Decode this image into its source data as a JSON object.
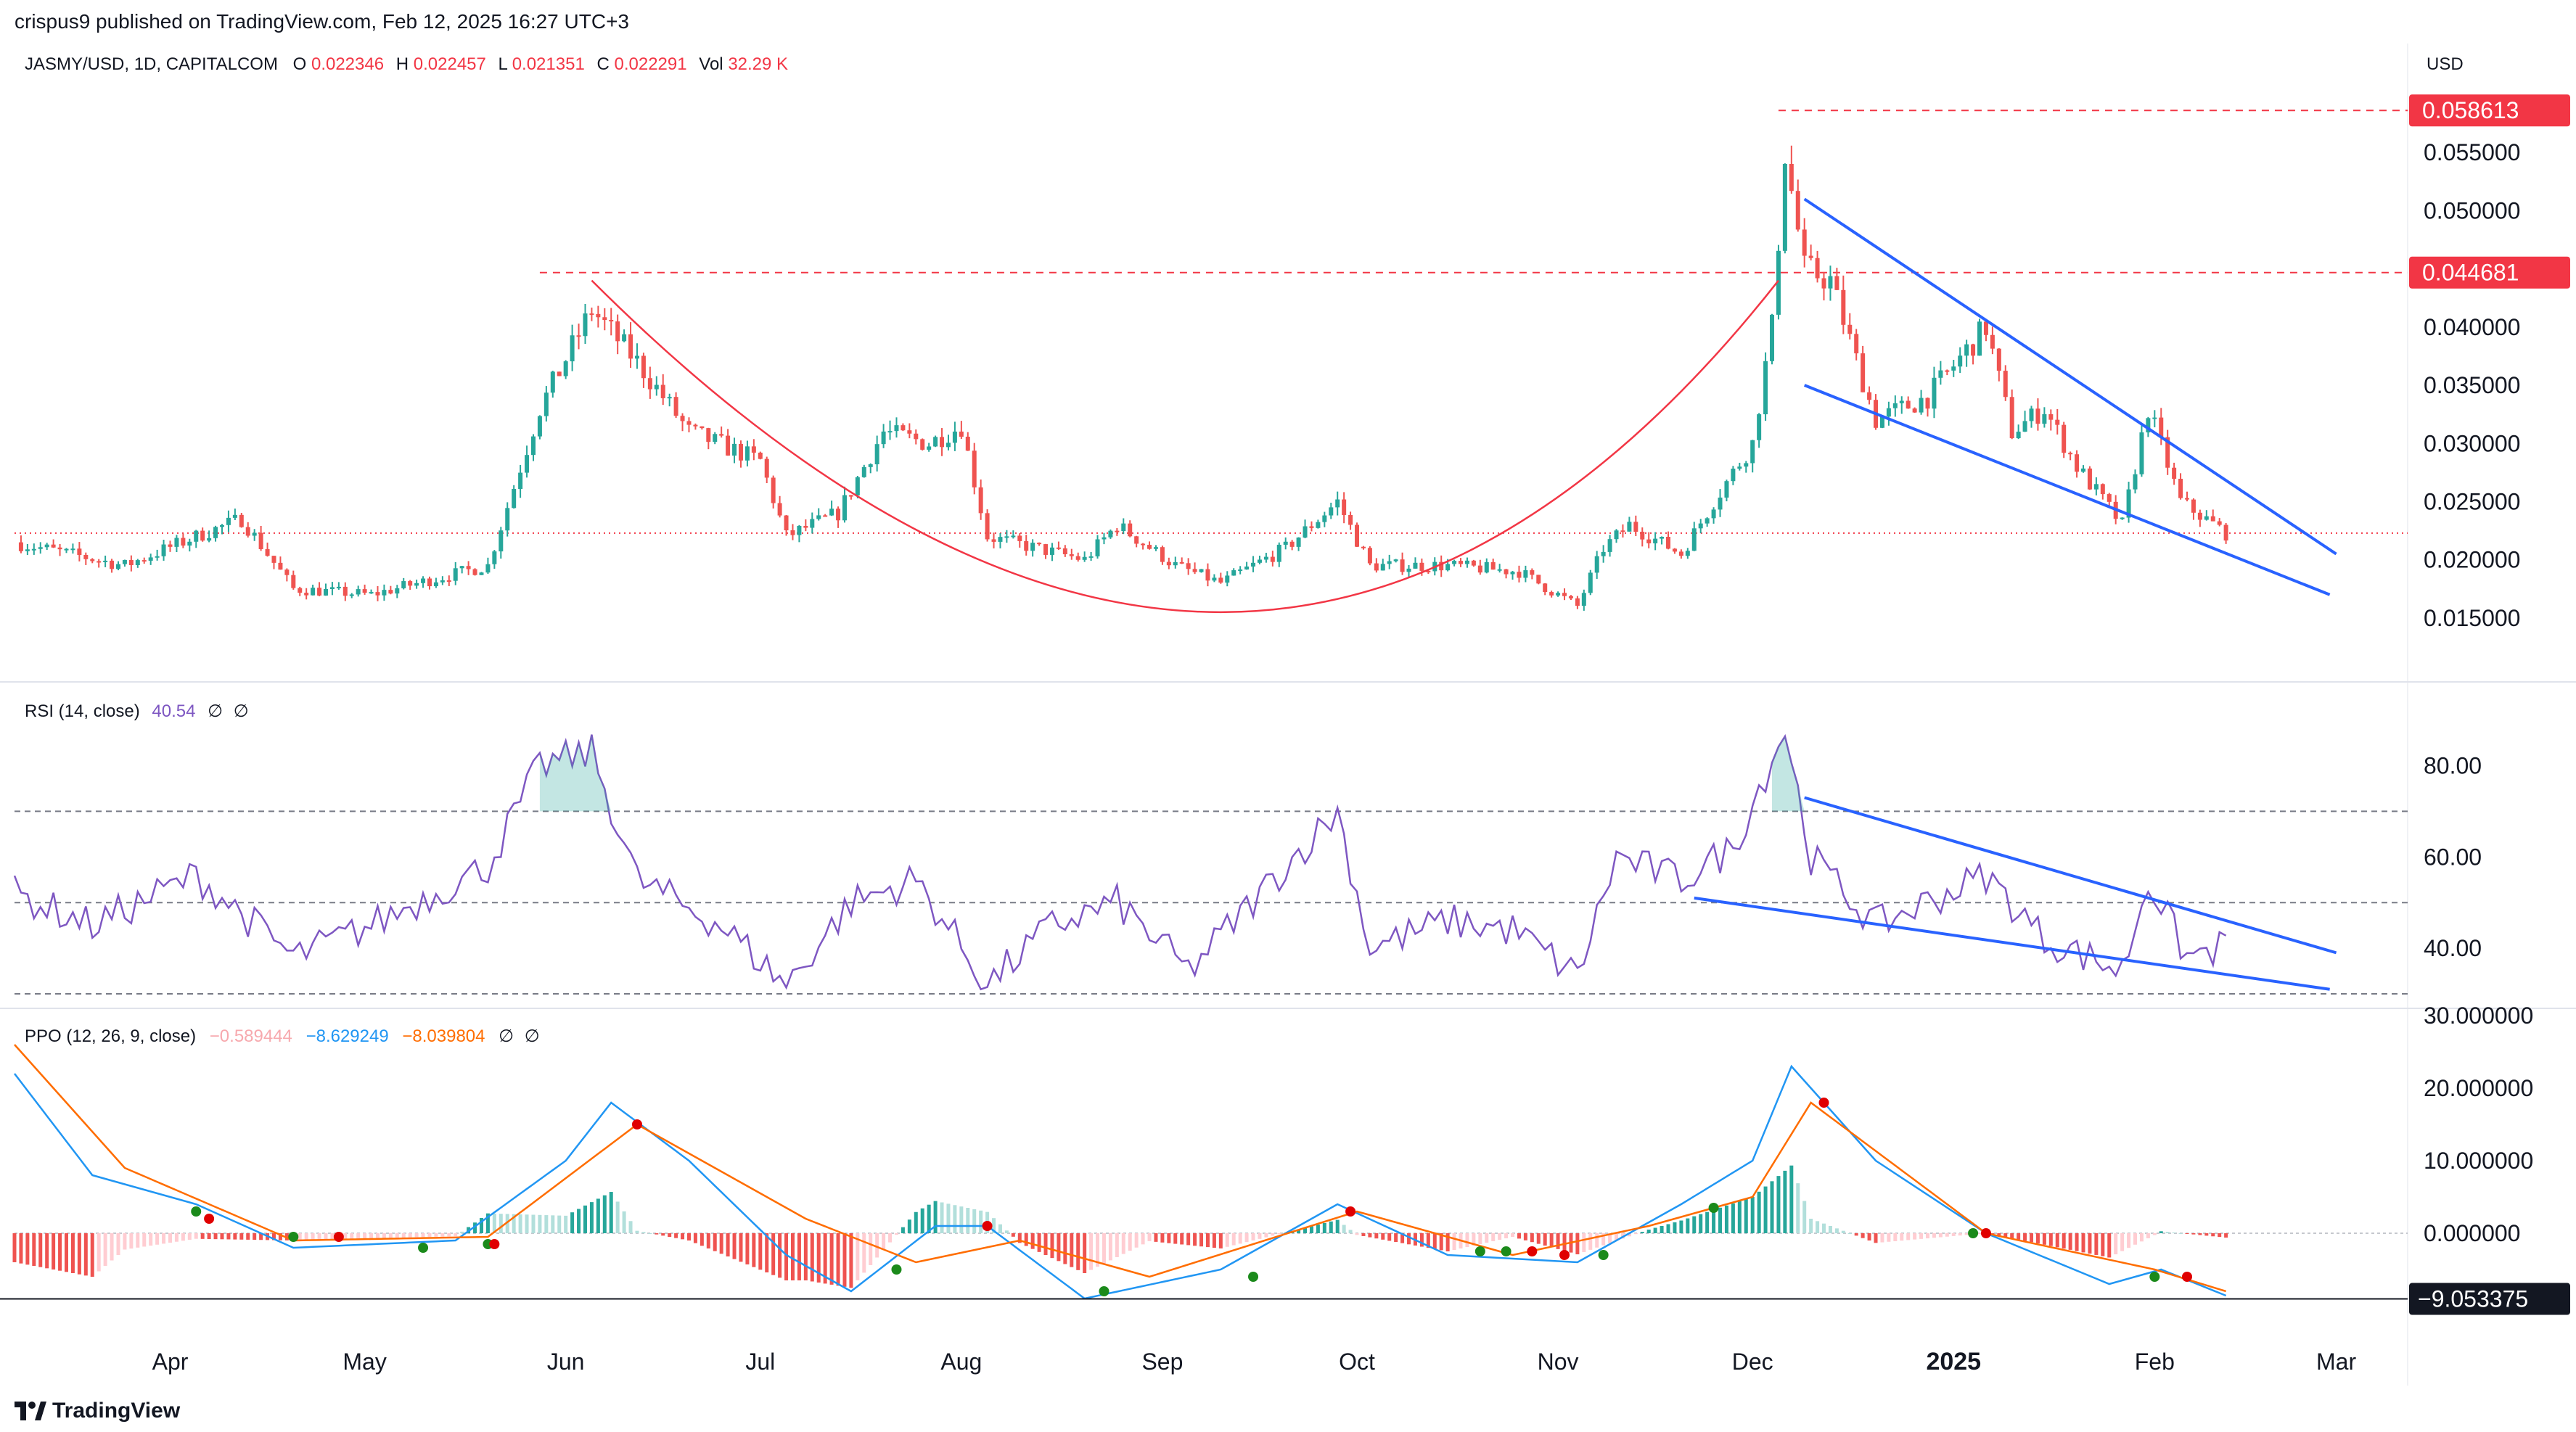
{
  "header": {
    "publisher_line": "crispus9 published on TradingView.com, Feb 12, 2025 16:27 UTC+3"
  },
  "legend": {
    "symbol": "JASMY/USD, 1D, CAPITALCOM",
    "o_label": "O",
    "o_value": "0.022346",
    "h_label": "H",
    "h_value": "0.022457",
    "l_label": "L",
    "l_value": "0.021351",
    "c_label": "C",
    "c_value": "0.022291",
    "vol_label": "Vol",
    "vol_value": "32.29 K"
  },
  "rsi_legend": {
    "name": "RSI (14, close)",
    "value": "40.54",
    "null1": "∅",
    "null2": "∅"
  },
  "ppo_legend": {
    "name": "PPO (12, 26, 9, close)",
    "hist": "−0.589444",
    "ppo": "−8.629249",
    "signal": "−8.039804",
    "null1": "∅",
    "null2": "∅"
  },
  "currency_label": "USD",
  "footer": {
    "brand": "TradingView"
  },
  "colors": {
    "up": "#26a69a",
    "down": "#ef5350",
    "rsi": "#7e57c2",
    "trend": "#2962ff",
    "cup": "#f23645",
    "ppo": "#2196f3",
    "signal": "#ff6d00"
  },
  "chart_data": [
    {
      "type": "candlestick",
      "title": "JASMY/USD, 1D, CAPITALCOM",
      "x_ticks": [
        "Apr",
        "May",
        "Jun",
        "Jul",
        "Aug",
        "Sep",
        "Oct",
        "Nov",
        "Dec",
        "2025",
        "Feb",
        "Mar"
      ],
      "y_ticks": [
        "0.055000",
        "0.050000",
        "0.040000",
        "0.035000",
        "0.030000",
        "0.025000",
        "0.020000",
        "0.015000"
      ],
      "ylim": [
        0.012,
        0.06
      ],
      "x_range": [
        "2024-03-08",
        "2025-03-10"
      ],
      "price_labels": [
        {
          "text": "0.058613",
          "value": 0.058613
        },
        {
          "text": "0.044681",
          "value": 0.044681
        }
      ],
      "last_price": 0.022291,
      "anchors": [
        {
          "date": "2024-03-08",
          "price": 0.0215
        },
        {
          "date": "2024-03-25",
          "price": 0.0195
        },
        {
          "date": "2024-04-05",
          "price": 0.022
        },
        {
          "date": "2024-04-12",
          "price": 0.0235
        },
        {
          "date": "2024-04-20",
          "price": 0.0175
        },
        {
          "date": "2024-05-02",
          "price": 0.017
        },
        {
          "date": "2024-05-20",
          "price": 0.0195
        },
        {
          "date": "2024-05-28",
          "price": 0.033
        },
        {
          "date": "2024-06-05",
          "price": 0.0415
        },
        {
          "date": "2024-06-12",
          "price": 0.037
        },
        {
          "date": "2024-06-20",
          "price": 0.031
        },
        {
          "date": "2024-07-01",
          "price": 0.0285
        },
        {
          "date": "2024-07-05",
          "price": 0.022
        },
        {
          "date": "2024-07-13",
          "price": 0.024
        },
        {
          "date": "2024-07-20",
          "price": 0.031
        },
        {
          "date": "2024-07-27",
          "price": 0.03
        },
        {
          "date": "2024-08-01",
          "price": 0.0315
        },
        {
          "date": "2024-08-05",
          "price": 0.022
        },
        {
          "date": "2024-08-20",
          "price": 0.02
        },
        {
          "date": "2024-08-25",
          "price": 0.023
        },
        {
          "date": "2024-09-03",
          "price": 0.0195
        },
        {
          "date": "2024-09-10",
          "price": 0.018
        },
        {
          "date": "2024-09-20",
          "price": 0.021
        },
        {
          "date": "2024-09-28",
          "price": 0.025
        },
        {
          "date": "2024-10-03",
          "price": 0.0195
        },
        {
          "date": "2024-10-15",
          "price": 0.0195
        },
        {
          "date": "2024-10-26",
          "price": 0.019
        },
        {
          "date": "2024-11-04",
          "price": 0.016
        },
        {
          "date": "2024-11-08",
          "price": 0.021
        },
        {
          "date": "2024-11-12",
          "price": 0.023
        },
        {
          "date": "2024-11-20",
          "price": 0.0205
        },
        {
          "date": "2024-11-25",
          "price": 0.025
        },
        {
          "date": "2024-12-01",
          "price": 0.03
        },
        {
          "date": "2024-12-04",
          "price": 0.04
        },
        {
          "date": "2024-12-06",
          "price": 0.055
        },
        {
          "date": "2024-12-09",
          "price": 0.045
        },
        {
          "date": "2024-12-13",
          "price": 0.044
        },
        {
          "date": "2024-12-20",
          "price": 0.032
        },
        {
          "date": "2024-12-28",
          "price": 0.034
        },
        {
          "date": "2025-01-06",
          "price": 0.04
        },
        {
          "date": "2025-01-10",
          "price": 0.031
        },
        {
          "date": "2025-01-15",
          "price": 0.033
        },
        {
          "date": "2025-01-20",
          "price": 0.028
        },
        {
          "date": "2025-01-27",
          "price": 0.023
        },
        {
          "date": "2025-01-31",
          "price": 0.033
        },
        {
          "date": "2025-02-05",
          "price": 0.025
        },
        {
          "date": "2025-02-12",
          "price": 0.0223
        }
      ],
      "drawings": {
        "resistance_lines": [
          0.058613,
          0.044681
        ],
        "cup": {
          "start": [
            "2024-06-05",
            0.044
          ],
          "bottom": [
            "2024-09-10",
            0.0155
          ],
          "end": [
            "2024-12-05",
            0.044
          ]
        },
        "wedge_upper": [
          [
            "2024-12-09",
            0.051
          ],
          [
            "2025-03-01",
            0.0205
          ]
        ],
        "wedge_lower": [
          [
            "2024-12-09",
            0.035
          ],
          [
            "2025-02-28",
            0.017
          ]
        ]
      }
    },
    {
      "type": "line",
      "title": "RSI (14, close)",
      "y_ticks": [
        "80.00",
        "60.00",
        "40.00"
      ],
      "ylim": [
        30,
        92
      ],
      "bands": [
        70,
        50,
        30
      ],
      "last_value": 40.54,
      "anchors": [
        {
          "date": "2024-03-08",
          "value": 52
        },
        {
          "date": "2024-03-20",
          "value": 45
        },
        {
          "date": "2024-04-05",
          "value": 56
        },
        {
          "date": "2024-04-20",
          "value": 38
        },
        {
          "date": "2024-05-02",
          "value": 45
        },
        {
          "date": "2024-05-20",
          "value": 58
        },
        {
          "date": "2024-05-28",
          "value": 80
        },
        {
          "date": "2024-06-05",
          "value": 83
        },
        {
          "date": "2024-06-12",
          "value": 55
        },
        {
          "date": "2024-06-25",
          "value": 45
        },
        {
          "date": "2024-07-05",
          "value": 32
        },
        {
          "date": "2024-07-15",
          "value": 50
        },
        {
          "date": "2024-07-25",
          "value": 55
        },
        {
          "date": "2024-08-05",
          "value": 32
        },
        {
          "date": "2024-08-15",
          "value": 45
        },
        {
          "date": "2024-08-25",
          "value": 50
        },
        {
          "date": "2024-09-05",
          "value": 35
        },
        {
          "date": "2024-09-20",
          "value": 58
        },
        {
          "date": "2024-09-28",
          "value": 70
        },
        {
          "date": "2024-10-03",
          "value": 40
        },
        {
          "date": "2024-10-15",
          "value": 46
        },
        {
          "date": "2024-10-25",
          "value": 44
        },
        {
          "date": "2024-11-04",
          "value": 34
        },
        {
          "date": "2024-11-10",
          "value": 60
        },
        {
          "date": "2024-11-20",
          "value": 55
        },
        {
          "date": "2024-11-28",
          "value": 62
        },
        {
          "date": "2024-12-06",
          "value": 88
        },
        {
          "date": "2024-12-10",
          "value": 60
        },
        {
          "date": "2024-12-20",
          "value": 45
        },
        {
          "date": "2025-01-06",
          "value": 56
        },
        {
          "date": "2025-01-15",
          "value": 42
        },
        {
          "date": "2025-01-27",
          "value": 35
        },
        {
          "date": "2025-01-31",
          "value": 55
        },
        {
          "date": "2025-02-06",
          "value": 38
        },
        {
          "date": "2025-02-12",
          "value": 40.54
        }
      ],
      "drawings": {
        "trend_upper": [
          [
            "2024-12-09",
            73
          ],
          [
            "2025-03-01",
            39
          ]
        ],
        "trend_lower": [
          [
            "2024-11-22",
            51
          ],
          [
            "2025-02-28",
            31
          ]
        ]
      }
    },
    {
      "type": "line",
      "title": "PPO (12, 26, 9, close)",
      "y_ticks": [
        "30.000000",
        "20.000000",
        "10.000000",
        "0.000000"
      ],
      "ylim": [
        -10,
        30
      ],
      "last_value": -9.053375,
      "last_label": "−9.053375",
      "series": [
        {
          "name": "PPO",
          "anchors": [
            {
              "date": "2024-03-08",
              "value": 22
            },
            {
              "date": "2024-03-20",
              "value": 8
            },
            {
              "date": "2024-04-05",
              "value": 4
            },
            {
              "date": "2024-04-20",
              "value": -2
            },
            {
              "date": "2024-05-15",
              "value": -1
            },
            {
              "date": "2024-06-01",
              "value": 10
            },
            {
              "date": "2024-06-08",
              "value": 18
            },
            {
              "date": "2024-06-20",
              "value": 10
            },
            {
              "date": "2024-07-05",
              "value": -3
            },
            {
              "date": "2024-07-15",
              "value": -8
            },
            {
              "date": "2024-07-28",
              "value": 1
            },
            {
              "date": "2024-08-05",
              "value": 1
            },
            {
              "date": "2024-08-20",
              "value": -9
            },
            {
              "date": "2024-09-10",
              "value": -5
            },
            {
              "date": "2024-09-28",
              "value": 4
            },
            {
              "date": "2024-10-15",
              "value": -3
            },
            {
              "date": "2024-11-04",
              "value": -4
            },
            {
              "date": "2024-11-20",
              "value": 4
            },
            {
              "date": "2024-12-01",
              "value": 10
            },
            {
              "date": "2024-12-07",
              "value": 23
            },
            {
              "date": "2024-12-20",
              "value": 10
            },
            {
              "date": "2025-01-06",
              "value": 0
            },
            {
              "date": "2025-01-25",
              "value": -7
            },
            {
              "date": "2025-02-02",
              "value": -5
            },
            {
              "date": "2025-02-12",
              "value": -8.6
            }
          ]
        },
        {
          "name": "Signal",
          "anchors": [
            {
              "date": "2024-03-08",
              "value": 26
            },
            {
              "date": "2024-03-25",
              "value": 9
            },
            {
              "date": "2024-04-20",
              "value": -1
            },
            {
              "date": "2024-05-20",
              "value": -0.5
            },
            {
              "date": "2024-06-12",
              "value": 15
            },
            {
              "date": "2024-07-08",
              "value": 2
            },
            {
              "date": "2024-07-25",
              "value": -4
            },
            {
              "date": "2024-08-10",
              "value": -1
            },
            {
              "date": "2024-08-30",
              "value": -6
            },
            {
              "date": "2024-10-01",
              "value": 3
            },
            {
              "date": "2024-10-25",
              "value": -3
            },
            {
              "date": "2024-11-15",
              "value": 1
            },
            {
              "date": "2024-12-01",
              "value": 5
            },
            {
              "date": "2024-12-10",
              "value": 18
            },
            {
              "date": "2025-01-06",
              "value": 0
            },
            {
              "date": "2025-02-01",
              "value": -5
            },
            {
              "date": "2025-02-12",
              "value": -8.0
            }
          ]
        }
      ],
      "histogram_last": -0.589444,
      "ppo_last": -8.629249,
      "signal_last": -8.039804,
      "cross_dots": [
        {
          "date": "2024-04-05",
          "value": 3,
          "kind": "up"
        },
        {
          "date": "2024-04-07",
          "value": 2,
          "kind": "down"
        },
        {
          "date": "2024-04-20",
          "value": -0.5,
          "kind": "up"
        },
        {
          "date": "2024-04-27",
          "value": -0.5,
          "kind": "down"
        },
        {
          "date": "2024-05-10",
          "value": -2,
          "kind": "up"
        },
        {
          "date": "2024-05-20",
          "value": -1.5,
          "kind": "up"
        },
        {
          "date": "2024-05-21",
          "value": -1.5,
          "kind": "down"
        },
        {
          "date": "2024-06-12",
          "value": 15,
          "kind": "down"
        },
        {
          "date": "2024-07-22",
          "value": -5,
          "kind": "up"
        },
        {
          "date": "2024-08-05",
          "value": 1,
          "kind": "down"
        },
        {
          "date": "2024-08-23",
          "value": -8,
          "kind": "up"
        },
        {
          "date": "2024-09-15",
          "value": -6,
          "kind": "up"
        },
        {
          "date": "2024-09-30",
          "value": 3,
          "kind": "down"
        },
        {
          "date": "2024-10-20",
          "value": -2.5,
          "kind": "up"
        },
        {
          "date": "2024-10-24",
          "value": -2.5,
          "kind": "up"
        },
        {
          "date": "2024-10-28",
          "value": -2.5,
          "kind": "down"
        },
        {
          "date": "2024-11-02",
          "value": -3,
          "kind": "down"
        },
        {
          "date": "2024-11-08",
          "value": -3,
          "kind": "up"
        },
        {
          "date": "2024-11-25",
          "value": 3.5,
          "kind": "up"
        },
        {
          "date": "2024-12-12",
          "value": 18,
          "kind": "down"
        },
        {
          "date": "2025-01-04",
          "value": 0,
          "kind": "up"
        },
        {
          "date": "2025-01-06",
          "value": 0,
          "kind": "down"
        },
        {
          "date": "2025-02-01",
          "value": -6,
          "kind": "up"
        },
        {
          "date": "2025-02-06",
          "value": -6,
          "kind": "down"
        }
      ]
    }
  ]
}
